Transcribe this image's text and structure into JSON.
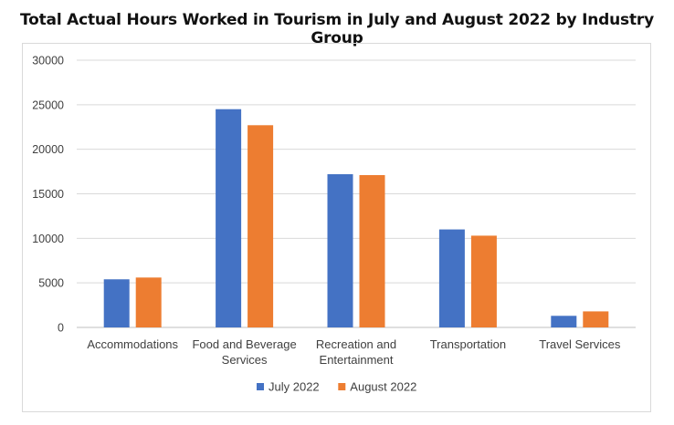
{
  "chart_data": {
    "type": "bar",
    "title": "Total Actual Hours Worked in Tourism in July and August 2022 by Industry Group",
    "categories": [
      [
        "Accommodations"
      ],
      [
        "Food and Beverage",
        "Services"
      ],
      [
        "Recreation and",
        "Entertainment"
      ],
      [
        "Transportation"
      ],
      [
        "Travel Services"
      ]
    ],
    "series": [
      {
        "name": "July 2022",
        "color": "#4472c4",
        "values": [
          5400,
          24500,
          17200,
          11000,
          1300
        ]
      },
      {
        "name": "August 2022",
        "color": "#ed7d31",
        "values": [
          5600,
          22700,
          17100,
          10300,
          1800
        ]
      }
    ],
    "ylim": [
      0,
      30000
    ],
    "yticks": [
      "0",
      "5000",
      "10000",
      "15000",
      "20000",
      "25000",
      "30000"
    ],
    "grid": true,
    "legend": "bottom"
  }
}
